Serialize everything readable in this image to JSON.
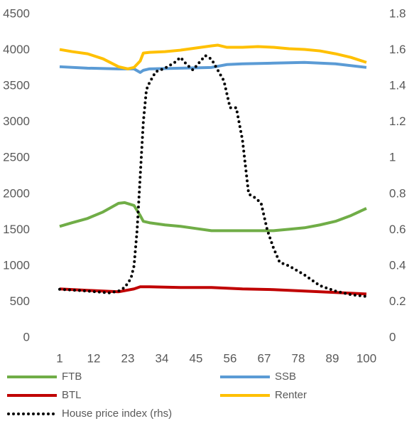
{
  "chart_data": {
    "type": "line",
    "xlim": [
      1,
      100
    ],
    "xticks": [
      1,
      12,
      23,
      34,
      45,
      56,
      67,
      78,
      89,
      100
    ],
    "ylim": [
      0,
      4500
    ],
    "yticks": [
      0,
      500,
      1000,
      1500,
      2000,
      2500,
      3000,
      3500,
      4000,
      4500
    ],
    "y2lim": [
      0,
      1.8
    ],
    "y2ticks": [
      0,
      0.2,
      0.4,
      0.6,
      0.8,
      1,
      1.2,
      1.4,
      1.6,
      1.8
    ],
    "grid": false,
    "series": [
      {
        "name": "FTB",
        "color": "#70ad47",
        "x": [
          1,
          5,
          10,
          15,
          20,
          22,
          25,
          27,
          28,
          30,
          35,
          40,
          45,
          50,
          55,
          60,
          65,
          70,
          75,
          80,
          85,
          90,
          95,
          100
        ],
        "values": [
          1550,
          1600,
          1660,
          1750,
          1870,
          1880,
          1840,
          1700,
          1620,
          1600,
          1570,
          1550,
          1520,
          1490,
          1490,
          1490,
          1490,
          1490,
          1510,
          1530,
          1570,
          1620,
          1700,
          1800
        ]
      },
      {
        "name": "SSB",
        "color": "#5b9bd5",
        "x": [
          1,
          10,
          20,
          25,
          27,
          28,
          30,
          40,
          50,
          55,
          60,
          70,
          80,
          90,
          100
        ],
        "values": [
          3770,
          3750,
          3740,
          3740,
          3690,
          3720,
          3740,
          3750,
          3760,
          3800,
          3810,
          3820,
          3830,
          3810,
          3760
        ]
      },
      {
        "name": "BTL",
        "color": "#c00000",
        "x": [
          1,
          10,
          20,
          25,
          27,
          30,
          40,
          50,
          60,
          70,
          80,
          90,
          100
        ],
        "values": [
          680,
          660,
          640,
          680,
          710,
          710,
          700,
          700,
          680,
          670,
          650,
          630,
          610
        ]
      },
      {
        "name": "Renter",
        "color": "#ffc000",
        "x": [
          1,
          5,
          10,
          15,
          20,
          23,
          25,
          27,
          28,
          30,
          35,
          40,
          45,
          50,
          52,
          55,
          60,
          65,
          70,
          75,
          80,
          85,
          90,
          95,
          100
        ],
        "values": [
          4010,
          3980,
          3950,
          3880,
          3770,
          3740,
          3760,
          3850,
          3960,
          3970,
          3980,
          4000,
          4030,
          4060,
          4070,
          4040,
          4040,
          4050,
          4040,
          4020,
          4010,
          3990,
          3950,
          3900,
          3830
        ]
      },
      {
        "name": "House price index (rhs)",
        "color": "#000000",
        "axis": "y2",
        "dotted": true,
        "x": [
          1,
          10,
          17,
          20,
          22,
          24,
          25,
          26,
          27,
          28,
          29,
          30,
          32,
          35,
          38,
          40,
          42,
          44,
          46,
          48,
          50,
          52,
          54,
          56,
          58,
          60,
          62,
          64,
          66,
          68,
          70,
          72,
          75,
          80,
          85,
          90,
          95,
          100
        ],
        "values": [
          0.27,
          0.26,
          0.25,
          0.26,
          0.28,
          0.33,
          0.4,
          0.6,
          0.9,
          1.2,
          1.38,
          1.42,
          1.48,
          1.5,
          1.53,
          1.56,
          1.52,
          1.49,
          1.53,
          1.57,
          1.55,
          1.49,
          1.43,
          1.28,
          1.28,
          1.1,
          0.8,
          0.78,
          0.75,
          0.6,
          0.5,
          0.42,
          0.4,
          0.35,
          0.29,
          0.26,
          0.24,
          0.23
        ]
      }
    ]
  }
}
